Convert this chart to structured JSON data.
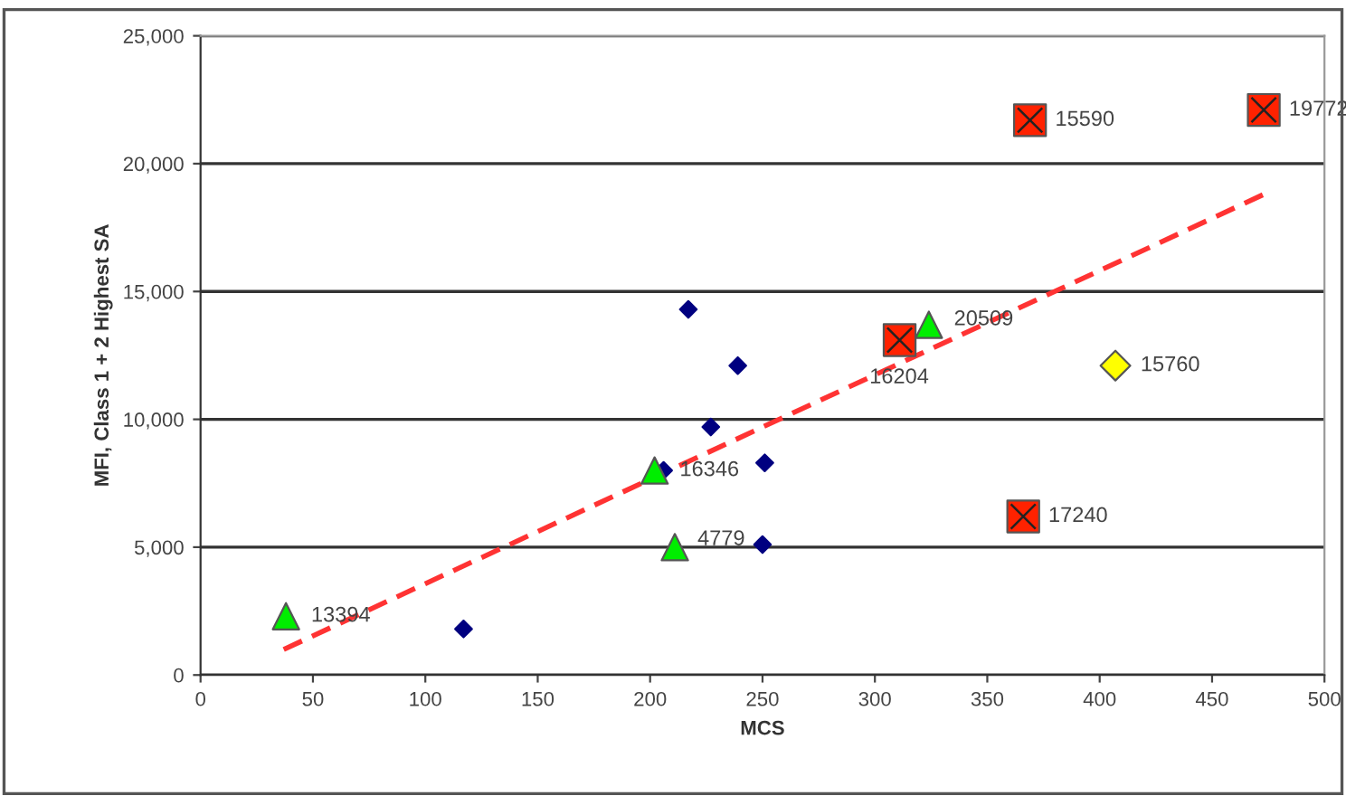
{
  "chart_data": {
    "type": "scatter",
    "xlabel": "MCS",
    "ylabel": "MFI, Class 1 + 2 Highest SA",
    "xlim": [
      0,
      500
    ],
    "xticks": [
      0,
      50,
      100,
      150,
      200,
      250,
      300,
      350,
      400,
      450,
      500
    ],
    "ylim": [
      0,
      25000
    ],
    "yticks": [
      {
        "value": 0,
        "label": "0"
      },
      {
        "value": 5000,
        "label": "5,000"
      },
      {
        "value": 10000,
        "label": "10,000"
      },
      {
        "value": 15000,
        "label": "15,000"
      },
      {
        "value": 20000,
        "label": "20,000"
      },
      {
        "value": 25000,
        "label": "25,000"
      }
    ],
    "grid": "y",
    "series": [
      {
        "marker": "diamond",
        "color": "#000080",
        "x": [
          217,
          239,
          227,
          206,
          117,
          251,
          250
        ],
        "values": [
          14300,
          12100,
          9700,
          8000,
          1800,
          8300,
          5100
        ]
      },
      {
        "marker": "triangle",
        "color": "#00ee00",
        "x": [
          38,
          202,
          211,
          324
        ],
        "values": [
          2300,
          8000,
          5000,
          13700
        ]
      },
      {
        "marker": "square",
        "color": "#ff2200",
        "x": [
          369,
          473,
          311,
          366
        ],
        "values": [
          21700,
          22100,
          13100,
          6200
        ]
      },
      {
        "marker": "diamond",
        "color": "#ffff00",
        "x": [
          407
        ],
        "values": [
          12100
        ]
      },
      {
        "type": "line",
        "line_style": "dashed",
        "color": "#ff3333",
        "x": [
          37,
          473
        ],
        "values": [
          1000,
          18800
        ]
      }
    ],
    "annotations": [
      {
        "text": "13394",
        "x": 38,
        "y": 2300
      },
      {
        "text": "16346",
        "x": 202,
        "y": 8000
      },
      {
        "text": "4779",
        "x": 211,
        "y": 5000
      },
      {
        "text": "20509",
        "x": 324,
        "y": 13700
      },
      {
        "text": "15590",
        "x": 369,
        "y": 21700
      },
      {
        "text": "19772",
        "x": 473,
        "y": 22100
      },
      {
        "text": "16204",
        "x": 311,
        "y": 13100
      },
      {
        "text": "17240",
        "x": 366,
        "y": 6200
      },
      {
        "text": "15760",
        "x": 407,
        "y": 12100
      }
    ]
  }
}
